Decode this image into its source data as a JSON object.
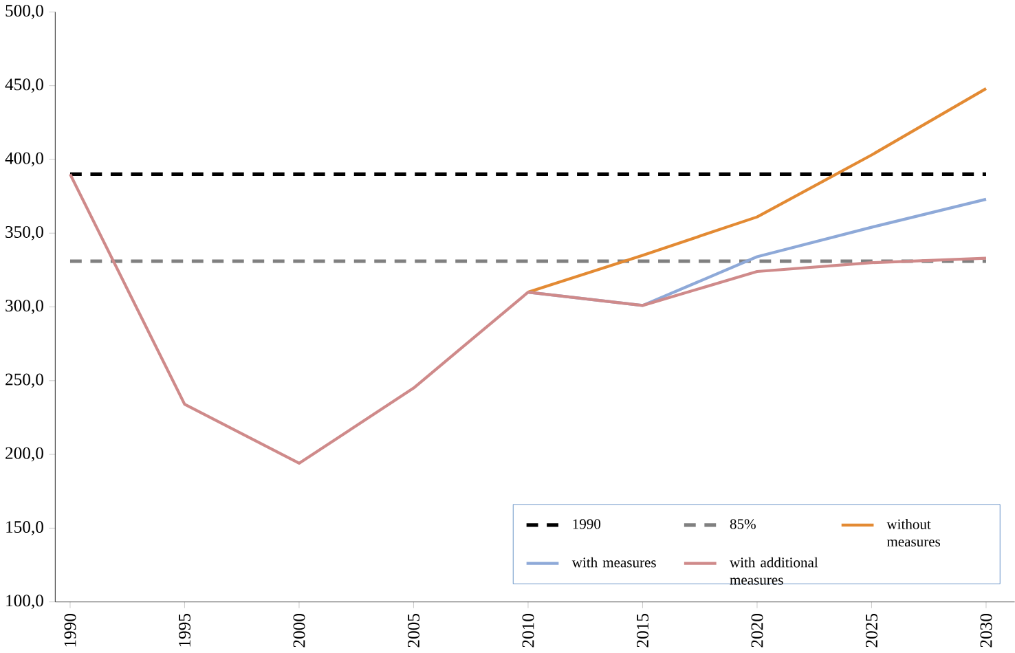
{
  "chart_data": {
    "type": "line",
    "categories": [
      "1990",
      "1995",
      "2000",
      "2005",
      "2010",
      "2015",
      "2020",
      "2025",
      "2030"
    ],
    "series": [
      {
        "name": "1990",
        "color": "#000000",
        "line_style": "dashed",
        "values": [
          390,
          390,
          390,
          390,
          390,
          390,
          390,
          390,
          390
        ]
      },
      {
        "name": "85%",
        "color": "#808080",
        "line_style": "dashed",
        "values": [
          331,
          331,
          331,
          331,
          331,
          331,
          331,
          331,
          331
        ]
      },
      {
        "name": "without measures",
        "color": "#e38a33",
        "line_style": "solid",
        "values": [
          null,
          null,
          null,
          null,
          310,
          335,
          361,
          403,
          448
        ]
      },
      {
        "name": "with measures",
        "color": "#8ea9d8",
        "line_style": "solid",
        "values": [
          null,
          null,
          null,
          null,
          310,
          301,
          334,
          354,
          373
        ]
      },
      {
        "name": "with additional measures",
        "color": "#cf8a8a",
        "line_style": "solid",
        "values": [
          390,
          234,
          194,
          245,
          310,
          301,
          324,
          330,
          333
        ]
      }
    ],
    "ylim": [
      100,
      500
    ],
    "yticks": [
      {
        "value": 100,
        "label": "100,0"
      },
      {
        "value": 150,
        "label": "150,0"
      },
      {
        "value": 200,
        "label": "200,0"
      },
      {
        "value": 250,
        "label": "250,0"
      },
      {
        "value": 300,
        "label": "300,0"
      },
      {
        "value": 350,
        "label": "350,0"
      },
      {
        "value": 400,
        "label": "400,0"
      },
      {
        "value": 450,
        "label": "450,0"
      },
      {
        "value": 500,
        "label": "500,0"
      }
    ],
    "grid": false,
    "legend": "bottom right",
    "marker": "none"
  }
}
